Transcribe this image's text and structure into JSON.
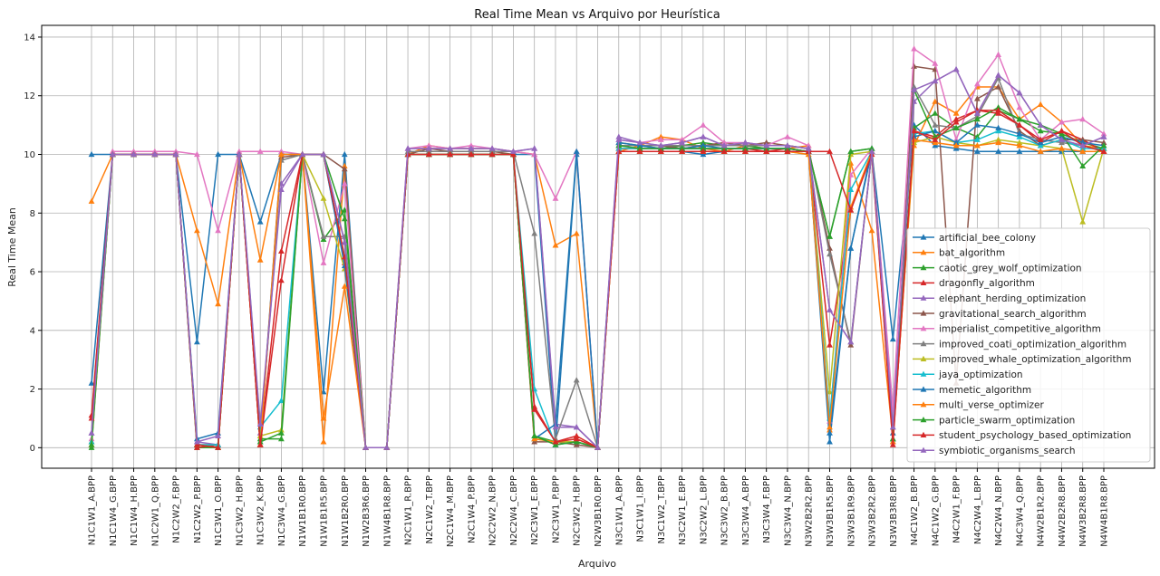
{
  "chart_data": {
    "type": "line",
    "title": "Real Time Mean vs Arquivo por Heurística",
    "xlabel": "Arquivo",
    "ylabel": "Real Time Mean",
    "ylim": [
      -0.7,
      14.4
    ],
    "yticks": [
      0,
      2,
      4,
      6,
      8,
      10,
      12,
      14
    ],
    "grid": true,
    "legend_position": "center-right",
    "marker": "triangle-up",
    "categories": [
      "N1C1W1_A.BPP",
      "N1C1W4_G.BPP",
      "N1C1W4_H.BPP",
      "N1C2W1_Q.BPP",
      "N1C2W2_F.BPP",
      "N1C2W2_P.BPP",
      "N1C3W1_O.BPP",
      "N1C3W2_H.BPP",
      "N1C3W2_K.BPP",
      "N1C3W4_G.BPP",
      "N1W1B1R0.BPP",
      "N1W1B1R5.BPP",
      "N1W1B2R0.BPP",
      "N1W2B3R6.BPP",
      "N1W4B1R8.BPP",
      "N2C1W1_R.BPP",
      "N2C1W2_T.BPP",
      "N2C1W4_M.BPP",
      "N2C1W4_P.BPP",
      "N2C2W2_N.BPP",
      "N2C2W4_C.BPP",
      "N2C3W1_E.BPP",
      "N2C3W1_P.BPP",
      "N2C3W2_H.BPP",
      "N2W3B1R0.BPP",
      "N3C1W1_A.BPP",
      "N3C1W1_I.BPP",
      "N3C1W2_T.BPP",
      "N3C2W1_E.BPP",
      "N3C2W2_L.BPP",
      "N3C3W2_B.BPP",
      "N3C3W4_A.BPP",
      "N3C3W4_F.BPP",
      "N3C3W4_N.BPP",
      "N3W2B2R2.BPP",
      "N3W3B1R5.BPP",
      "N3W3B1R9.BPP",
      "N3W3B2R2.BPP",
      "N3W3B3R8.BPP",
      "N4C1W2_B.BPP",
      "N4C1W2_G.BPP",
      "N4C2W1_F.BPP",
      "N4C2W4_L.BPP",
      "N4C2W4_N.BPP",
      "N4C3W4_Q.BPP",
      "N4W2B1R2.BPP",
      "N4W2B2R8.BPP",
      "N4W3B2R8.BPP",
      "N4W4B1R8.BPP"
    ],
    "series": [
      {
        "name": "artificial_bee_colony",
        "color": "#1f77b4",
        "values": [
          10,
          10,
          10,
          10,
          10,
          3.6,
          10,
          10,
          7.7,
          10,
          10,
          1.9,
          10,
          0,
          0,
          10,
          10,
          10,
          10,
          10,
          10,
          10,
          0.1,
          10,
          0,
          10.1,
          10.1,
          10.1,
          10.1,
          10,
          10.1,
          10.1,
          10.1,
          10.1,
          10.1,
          0.2,
          6.8,
          10.1,
          3.7,
          11,
          10.3,
          10.2,
          10.1,
          10.1,
          10.1,
          10.1,
          10.1,
          10.1,
          10.1
        ]
      },
      {
        "name": "bat_algorithm",
        "color": "#ff7f0e",
        "values": [
          8.4,
          10,
          10,
          10,
          10,
          7.4,
          4.9,
          10,
          6.4,
          10,
          10,
          0.2,
          9.6,
          0,
          0,
          10,
          10.3,
          10.2,
          10.2,
          10.2,
          10.1,
          10,
          6.9,
          7.3,
          0,
          10.1,
          10.3,
          10.6,
          10.5,
          10.2,
          10.1,
          10.3,
          10.2,
          10.2,
          10.3,
          0.6,
          9.7,
          7.4,
          0.3,
          10.3,
          11.8,
          11.4,
          12.3,
          12.3,
          11.2,
          11.7,
          11.1,
          10.3,
          10.2
        ]
      },
      {
        "name": "caotic_grey_wolf_optimization",
        "color": "#2ca02c",
        "values": [
          0,
          10,
          10,
          10,
          10,
          0,
          0,
          10,
          0.3,
          0.3,
          10,
          7.1,
          8.1,
          0,
          0,
          10,
          10,
          10,
          10,
          10,
          10,
          0.4,
          0.2,
          0.2,
          0,
          10.4,
          10.3,
          10.2,
          10.3,
          10.4,
          10.3,
          10.3,
          10.2,
          10.2,
          10.1,
          7.2,
          10.1,
          10.2,
          0.3,
          10.9,
          11.4,
          10.9,
          10.6,
          11.5,
          11.2,
          10.8,
          10.7,
          10.4,
          10.2
        ]
      },
      {
        "name": "dragonfly_algorithm",
        "color": "#d62728",
        "values": [
          1.1,
          10,
          10,
          10,
          10,
          0,
          0.1,
          10,
          0.1,
          6.7,
          10,
          10,
          6.3,
          0,
          0,
          10,
          10,
          10,
          10,
          10,
          10,
          1.4,
          0.2,
          0.4,
          0,
          10.2,
          10.2,
          10.2,
          10.2,
          10.2,
          10.2,
          10.2,
          10.1,
          10.2,
          10.1,
          3.5,
          8.1,
          10.1,
          0.2,
          10.8,
          10.6,
          11.2,
          11.5,
          11.4,
          11,
          10.4,
          10.8,
          10.5,
          10.1
        ]
      },
      {
        "name": "elephant_herding_optimization",
        "color": "#9467bd",
        "values": [
          0.5,
          10,
          10,
          10,
          10,
          0.2,
          0.1,
          10,
          0.5,
          9,
          10,
          10,
          7,
          0,
          0,
          10.2,
          10.2,
          10.2,
          10.2,
          10.2,
          10.1,
          10.2,
          0.8,
          0.7,
          0,
          10.6,
          10.4,
          10.3,
          10.4,
          10.6,
          10.3,
          10.4,
          10.3,
          10.3,
          10.2,
          4.7,
          3.6,
          10.1,
          0.7,
          11.8,
          12.5,
          12.9,
          11.4,
          12.7,
          12.1,
          11,
          10.5,
          10.3,
          10.6
        ]
      },
      {
        "name": "gravitational_search_algorithm",
        "color": "#8c564b",
        "values": [
          0.2,
          10,
          10,
          10,
          10,
          0.1,
          0.1,
          10,
          0.1,
          9.9,
          10,
          10,
          9.5,
          0,
          0,
          10,
          10.2,
          10.1,
          10.1,
          10.1,
          10,
          0.2,
          0.2,
          0.1,
          0,
          10.3,
          10.3,
          10.3,
          10.2,
          10.3,
          10.4,
          10.3,
          10.4,
          10.3,
          10.2,
          6.8,
          3.5,
          10.1,
          0.2,
          13,
          12.9,
          2.2,
          11.9,
          12.3,
          10.8,
          10.3,
          10.5,
          10.5,
          10.4
        ]
      },
      {
        "name": "imperialist_competitive_algorithm",
        "color": "#e377c2",
        "values": [
          0.3,
          10.1,
          10.1,
          10.1,
          10.1,
          10,
          7.4,
          10.1,
          10.1,
          10.1,
          10,
          6.3,
          9,
          0,
          0,
          10.2,
          10.3,
          10.2,
          10.3,
          10.2,
          10.1,
          10,
          8.5,
          10.1,
          0,
          10.5,
          10.4,
          10.5,
          10.5,
          11,
          10.4,
          10.4,
          10.3,
          10.6,
          10.3,
          0.9,
          9.3,
          10.2,
          1.3,
          13.6,
          13.1,
          10.5,
          12.4,
          13.4,
          11.6,
          10.5,
          11.1,
          11.2,
          10.7
        ]
      },
      {
        "name": "improved_coati_optimization_algorithm",
        "color": "#7f7f7f",
        "values": [
          0.2,
          10,
          10,
          10,
          10,
          0.1,
          0.1,
          10,
          0.1,
          9.8,
          10,
          7.2,
          7.2,
          0,
          0,
          10.1,
          10.1,
          10.1,
          10.1,
          10.1,
          10.1,
          7.3,
          0.3,
          2.3,
          0,
          10.3,
          10.3,
          10.3,
          10.3,
          10.3,
          10.3,
          10.3,
          10.3,
          10.3,
          10.2,
          6.6,
          3.6,
          10.1,
          0.3,
          12.3,
          11,
          10.9,
          11.3,
          12.6,
          10.7,
          10.5,
          10.4,
          10.3,
          10.1
        ]
      },
      {
        "name": "improved_whale_optimization_algorithm",
        "color": "#bcbd22",
        "values": [
          0.2,
          10,
          10,
          10,
          10,
          0.1,
          0,
          10,
          0.4,
          0.6,
          10,
          8.5,
          6.1,
          0,
          0,
          10,
          10,
          10,
          10,
          10,
          10,
          0.3,
          0.2,
          0.2,
          0,
          10.1,
          10.1,
          10.1,
          10.1,
          10.1,
          10.1,
          10.1,
          10.1,
          10.1,
          10,
          1.9,
          10,
          10.1,
          0.3,
          10.4,
          10.6,
          10.4,
          10.3,
          10.5,
          10.4,
          10.3,
          10.2,
          7.7,
          10.2
        ]
      },
      {
        "name": "jaya_optimization",
        "color": "#17becf",
        "values": [
          0.2,
          10,
          10,
          10,
          10,
          0.1,
          0.1,
          10,
          0.7,
          1.6,
          10,
          10,
          6.5,
          0,
          0,
          10,
          10,
          10,
          10,
          10,
          10,
          2,
          0.1,
          0.2,
          0,
          10.2,
          10.2,
          10.2,
          10.2,
          10.2,
          10.2,
          10.2,
          10.2,
          10.2,
          10.1,
          1,
          8.8,
          10.1,
          0.3,
          10.7,
          10.8,
          10.4,
          10.5,
          10.8,
          10.6,
          10.3,
          10.5,
          10.2,
          10.2
        ]
      },
      {
        "name": "memetic_algorithm",
        "color": "#1f77b4",
        "values": [
          2.2,
          10,
          10,
          10,
          10,
          0.3,
          0.5,
          10,
          0.2,
          10,
          10,
          10,
          6.2,
          0,
          0,
          10,
          10,
          10,
          10,
          10,
          10,
          0.3,
          0.8,
          10.1,
          0,
          10.4,
          10.3,
          10.2,
          10.2,
          10.3,
          10.2,
          10.2,
          10.2,
          10.2,
          10.1,
          0.5,
          6.8,
          10.2,
          0.5,
          10.6,
          10.8,
          10.4,
          11,
          10.9,
          10.7,
          10.4,
          10.6,
          10.4,
          10.3
        ]
      },
      {
        "name": "multi_verse_optimizer",
        "color": "#ff7f0e",
        "values": [
          0.1,
          10,
          10,
          10,
          10,
          0.1,
          0,
          10,
          0.1,
          10,
          10,
          1,
          5.5,
          0,
          0,
          10,
          10,
          10,
          10,
          10,
          10,
          0.3,
          0.2,
          0.3,
          0,
          10.1,
          10.1,
          10.1,
          10.1,
          10.1,
          10.1,
          10.1,
          10.1,
          10.1,
          10,
          0.7,
          8.2,
          10.1,
          0.2,
          10.5,
          10.4,
          10.3,
          10.3,
          10.4,
          10.3,
          10.1,
          10.2,
          10.1,
          10.1
        ]
      },
      {
        "name": "particle_swarm_optimization",
        "color": "#2ca02c",
        "values": [
          0.1,
          10,
          10,
          10,
          10,
          0.1,
          0,
          10,
          0.2,
          0.5,
          10,
          10,
          7.8,
          0,
          0,
          10,
          10,
          10,
          10,
          10,
          10,
          0.4,
          0.1,
          0.2,
          0,
          10.3,
          10.2,
          10.2,
          10.2,
          10.2,
          10.2,
          10.2,
          10.2,
          10.2,
          10.1,
          7.2,
          10.1,
          10.2,
          0.3,
          12.2,
          10.6,
          10.9,
          11.2,
          11.6,
          11.2,
          11,
          10.7,
          9.6,
          10.3
        ]
      },
      {
        "name": "student_psychology_based_optimization",
        "color": "#d62728",
        "values": [
          1,
          10,
          10,
          10,
          10,
          0.1,
          0,
          10,
          0.1,
          5.7,
          10,
          10,
          6.5,
          0,
          0,
          10,
          10,
          10,
          10,
          10,
          10,
          1.3,
          0.2,
          0.3,
          0,
          10.1,
          10.1,
          10.1,
          10.1,
          10.1,
          10.1,
          10.1,
          10.1,
          10.1,
          10.1,
          10.1,
          8.1,
          10,
          0.1,
          10.8,
          10.5,
          11.1,
          11.5,
          11.5,
          11,
          10.5,
          10.8,
          10.3,
          10.1
        ]
      },
      {
        "name": "symbiotic_organisms_search",
        "color": "#9467bd",
        "values": [
          0.5,
          10,
          10,
          10,
          10,
          0.2,
          0.4,
          10,
          0.8,
          8.8,
          10,
          10,
          7,
          0,
          0,
          10.2,
          10.2,
          10.2,
          10.2,
          10.2,
          10.1,
          10.2,
          0.7,
          0.7,
          0,
          10.5,
          10.4,
          10.3,
          10.4,
          10.6,
          10.3,
          10.4,
          10.3,
          10.3,
          10.2,
          4.7,
          3.6,
          10.1,
          0.7,
          12.2,
          12.5,
          12.9,
          11.4,
          12.7,
          12.1,
          11,
          10.5,
          10.3,
          10.6
        ]
      }
    ]
  }
}
